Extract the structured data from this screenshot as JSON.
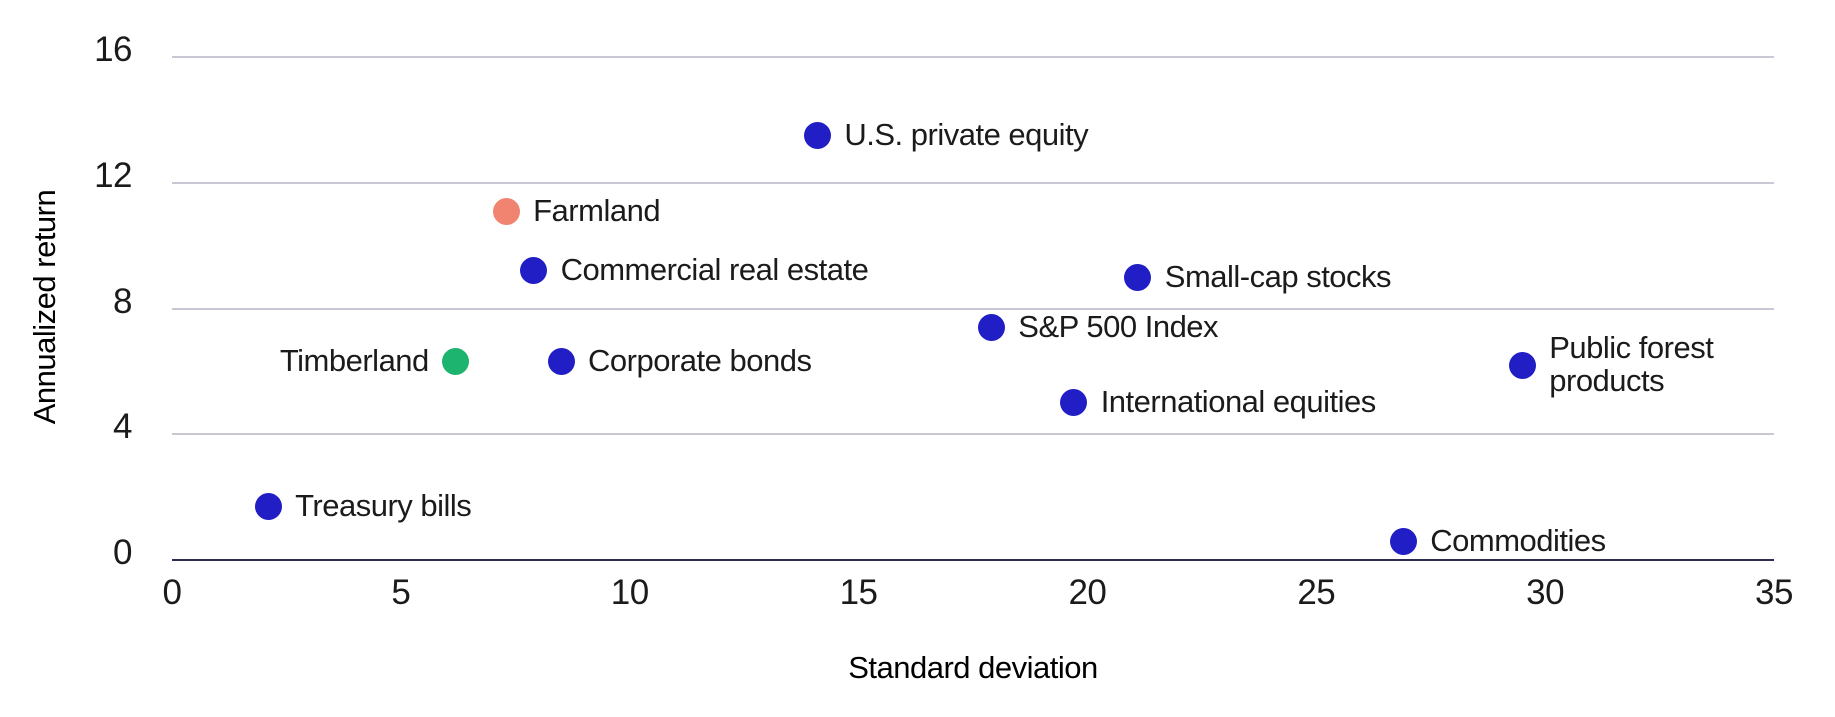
{
  "chart_data": {
    "type": "scatter",
    "title": "",
    "xlabel": "Standard deviation",
    "ylabel": "Annualized return",
    "xlim": [
      0,
      35
    ],
    "ylim": [
      0,
      16
    ],
    "x_ticks": [
      "0",
      "5",
      "10",
      "15",
      "20",
      "25",
      "30",
      "35"
    ],
    "x_tick_values": [
      0,
      5,
      10,
      15,
      20,
      25,
      30,
      35
    ],
    "y_ticks": [
      "0",
      "4",
      "8",
      "12",
      "16"
    ],
    "y_tick_values": [
      0,
      4,
      8,
      12,
      16
    ],
    "grid": "horizontal",
    "legend": "none",
    "colors": {
      "blue": "#201ec4",
      "green": "#1cb46f",
      "salmon": "#f08471",
      "grid": "#c8c8d4",
      "axis": "#2d2d52",
      "text": "#1b1b1b"
    },
    "points": [
      {
        "label": "Treasury bills",
        "x": 2.1,
        "y": 1.7,
        "color": "blue",
        "label_side": "right"
      },
      {
        "label": "Timberland",
        "x": 6.2,
        "y": 6.3,
        "color": "green",
        "label_side": "left"
      },
      {
        "label": "Corporate bonds",
        "x": 8.5,
        "y": 6.3,
        "color": "blue",
        "label_side": "right"
      },
      {
        "label": "Farmland",
        "x": 7.3,
        "y": 11.1,
        "color": "salmon",
        "label_side": "right"
      },
      {
        "label": "Commercial real estate",
        "x": 7.9,
        "y": 9.2,
        "color": "blue",
        "label_side": "right"
      },
      {
        "label": "U.S. private equity",
        "x": 14.1,
        "y": 13.5,
        "color": "blue",
        "label_side": "right"
      },
      {
        "label": "S&P 500 Index",
        "x": 17.9,
        "y": 7.4,
        "color": "blue",
        "label_side": "right"
      },
      {
        "label": "International equities",
        "x": 19.7,
        "y": 5.0,
        "color": "blue",
        "label_side": "right"
      },
      {
        "label": "Small-cap stocks",
        "x": 21.1,
        "y": 9.0,
        "color": "blue",
        "label_side": "right"
      },
      {
        "label": "Public forest products",
        "x": 29.5,
        "y": 6.2,
        "color": "blue",
        "label_side": "right",
        "label_lines": [
          "Public forest",
          "products"
        ]
      },
      {
        "label": "Commodities",
        "x": 26.9,
        "y": 0.6,
        "color": "blue",
        "label_side": "right"
      }
    ]
  }
}
